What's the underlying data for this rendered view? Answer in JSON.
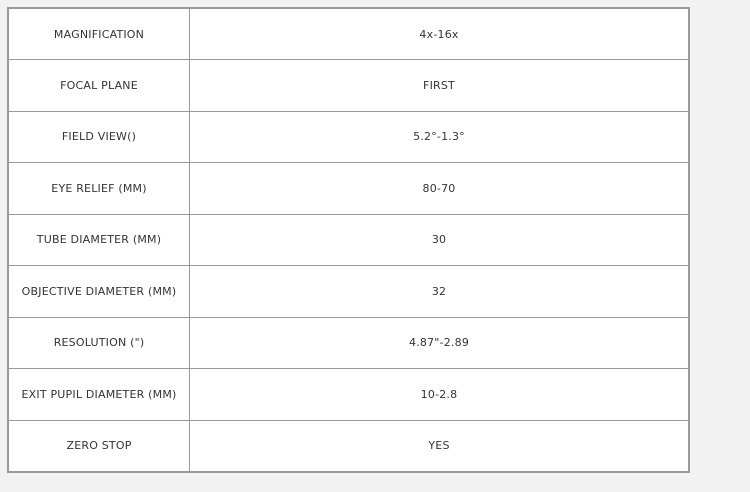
{
  "page": {
    "background_color": "#f2f2f2",
    "cell_background_color": "#ffffff",
    "border_color": "#999999",
    "text_color": "#333333"
  },
  "spec_table": {
    "rows": [
      {
        "label": "MAGNIFICATION",
        "value": "4x-16x"
      },
      {
        "label": "FOCAL PLANE",
        "value": "FIRST"
      },
      {
        "label": "FIELD VIEW()",
        "value": "5.2°-1.3°"
      },
      {
        "label": "EYE RELIEF (MM)",
        "value": "80-70"
      },
      {
        "label": "TUBE DIAMETER (MM)",
        "value": "30"
      },
      {
        "label": "OBJECTIVE DIAMETER (MM)",
        "value": "32"
      },
      {
        "label": "RESOLUTION (\")",
        "value": "4.87\"-2.89"
      },
      {
        "label": "EXIT PUPIL DIAMETER (MM)",
        "value": "10-2.8"
      },
      {
        "label": "ZERO STOP",
        "value": "YES"
      }
    ]
  }
}
